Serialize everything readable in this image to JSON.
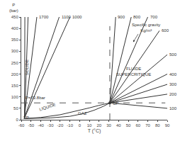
{
  "chart_data": {
    "type": "line",
    "x_label": "T (°C)",
    "y_label": "P\n(bar)",
    "xlim": [
      -60,
      90
    ],
    "ylim": [
      0,
      450
    ],
    "xticks": [
      -60,
      -50,
      -40,
      -30,
      -20,
      -10,
      0,
      10,
      20,
      30,
      40,
      50,
      60,
      70,
      80,
      90
    ],
    "yticks": [
      0,
      50,
      100,
      150,
      200,
      250,
      300,
      350,
      400,
      450
    ],
    "grid": false,
    "color": "#333333",
    "series": [
      {
        "name": "1700",
        "x": [
          -57,
          -44
        ],
        "values": [
          5,
          450
        ]
      },
      {
        "name": "1100",
        "x": [
          -57,
          -21
        ],
        "values": [
          5,
          450
        ]
      },
      {
        "name": "1000",
        "x": [
          -57,
          -10
        ],
        "values": [
          5,
          450
        ]
      },
      {
        "name": "900",
        "x": [
          31,
          37
        ],
        "values": [
          73.8,
          450
        ]
      },
      {
        "name": "800",
        "x": [
          31,
          53
        ],
        "values": [
          73.8,
          450
        ]
      },
      {
        "name": "700",
        "x": [
          31,
          70
        ],
        "values": [
          73.8,
          450
        ]
      },
      {
        "name": "600",
        "x": [
          31,
          82
        ],
        "values": [
          73.8,
          390
        ]
      },
      {
        "name": "500",
        "x": [
          31,
          90
        ],
        "values": [
          73.8,
          285
        ]
      },
      {
        "name": "400",
        "x": [
          31,
          90
        ],
        "values": [
          73.8,
          200
        ]
      },
      {
        "name": "300",
        "x": [
          31,
          90
        ],
        "values": [
          73.8,
          155
        ]
      },
      {
        "name": "200",
        "x": [
          31,
          90
        ],
        "values": [
          73.8,
          112
        ]
      },
      {
        "name": "100",
        "x": [
          31,
          90
        ],
        "values": [
          73.8,
          50
        ]
      },
      {
        "x": [
          -56.6,
          -40,
          -20,
          -5,
          10,
          20,
          31
        ],
        "values": [
          5.2,
          10,
          22,
          36,
          52,
          63,
          73.8
        ]
      },
      {
        "x": [
          -56.6,
          -30,
          -10,
          5,
          15,
          25,
          31
        ],
        "values": [
          5.2,
          8,
          15,
          28,
          42,
          60,
          73.8
        ]
      },
      {
        "x": [
          -56.6,
          -56.3
        ],
        "values": [
          5.2,
          450
        ]
      },
      {
        "x": [
          -56.6,
          -53
        ],
        "values": [
          5.2,
          450
        ]
      },
      {
        "x": [
          -60,
          88
        ],
        "values": [
          73.8,
          73.8
        ],
        "line_style": "dashed",
        "color": "#555555"
      },
      {
        "x": [
          31,
          31
        ],
        "values": [
          0,
          410
        ],
        "line_style": "dashed",
        "color": "#555555"
      },
      {
        "type": "scatter",
        "marker": "circle",
        "x": [
          31
        ],
        "values": [
          73.8
        ]
      }
    ],
    "annotations": [
      {
        "text": "SOLIDE",
        "x": -54,
        "y": 230
      },
      {
        "text": "LIQUIDE",
        "x": -33,
        "y": 28
      },
      {
        "text": "GAZ",
        "x": 3,
        "y": 12
      },
      {
        "text": "FLUIDE\nSUPERCRITIQUE",
        "x": 36,
        "y": 210
      },
      {
        "text": "CP",
        "x": 32.5,
        "y": 70
      },
      {
        "text": "TP",
        "x": -59,
        "y": 8
      },
      {
        "text": "P=73.8bar",
        "x": -57,
        "y": 80
      },
      {
        "text": "Specific gravity\nKg/m³",
        "x": 55,
        "y": 340,
        "text_x": 68,
        "text_y": 430
      }
    ]
  }
}
